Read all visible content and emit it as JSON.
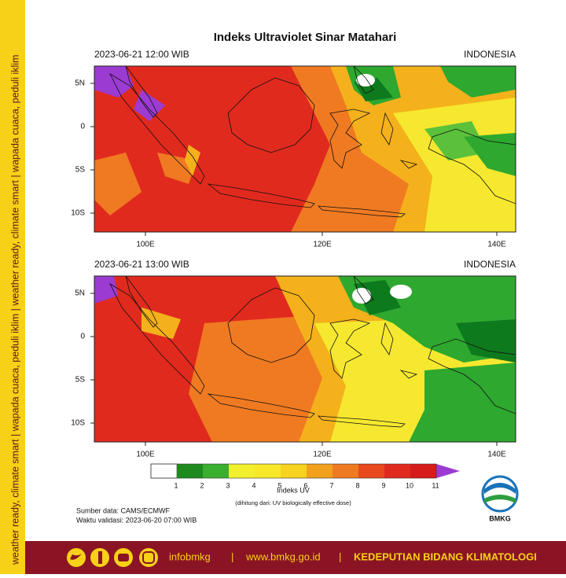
{
  "sidebar_text": "weather ready, climate smart | wapada cuaca, peduli iklim | weather ready, climate smart | wapada cuaca, peduli iklim",
  "title": "Indeks Ultraviolet Sinar Matahari",
  "maps": [
    {
      "timestamp": "2023-06-21  12:00 WIB",
      "region": "INDONESIA",
      "lat_labels": [
        "5N",
        "0",
        "5S",
        "10S"
      ],
      "lon_labels": [
        "100E",
        "120E",
        "140E"
      ]
    },
    {
      "timestamp": "2023-06-21  13:00 WIB",
      "region": "INDONESIA",
      "lat_labels": [
        "5N",
        "0",
        "5S",
        "10S"
      ],
      "lon_labels": [
        "100E",
        "120E",
        "140E"
      ]
    }
  ],
  "colorbar": {
    "labels": [
      "1",
      "2",
      "3",
      "4",
      "5",
      "6",
      "7",
      "8",
      "9",
      "10",
      "11"
    ],
    "title": "Indeks UV",
    "note": "(dihitung dari: UV biologically effective dose)"
  },
  "source": "Sumber data: CAMS/ECMWF",
  "validity": "Waktu validasi: 2023-06-20 07:00 WIB",
  "logo_text": "BMKG",
  "footer": {
    "handle": "infobmkg",
    "separator": "|",
    "website": "www.bmkg.go.id",
    "department": "KEDEPUTIAN BIDANG KLIMATOLOGI"
  }
}
